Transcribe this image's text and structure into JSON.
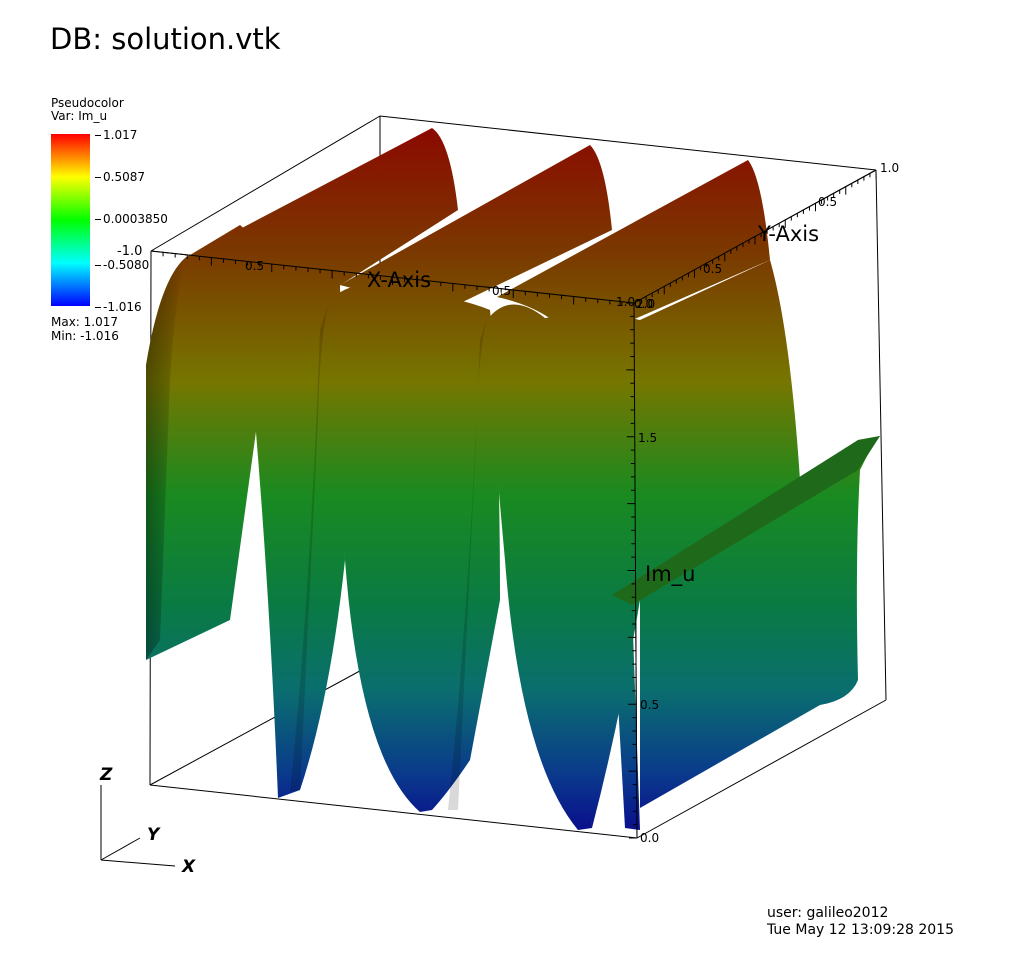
{
  "title": "DB: solution.vtk",
  "legend": {
    "plot_type": "Pseudocolor",
    "var_label": "Var: Im_u",
    "ticks": [
      "1.017",
      "0.5087",
      "0.0003850",
      "-0.5080",
      "-1.016"
    ],
    "max_label": "Max:  1.017",
    "min_label": "Min: -1.016"
  },
  "footer": {
    "user": "user: galileo2012",
    "date": "Tue May 12 13:09:28 2015"
  },
  "axes": {
    "x_title": "X-Axis",
    "y_title": "Y-Axis",
    "z_title": "Im_u",
    "x_ticks": [
      "-1.0",
      "0.5",
      "0.5",
      "1.0"
    ],
    "y_ticks": [
      "0.0",
      "0.5",
      "0.5",
      "1.0"
    ],
    "z_ticks": [
      "2.0",
      "1.5",
      "0.5",
      "0.0"
    ],
    "triad": [
      "Z",
      "Y",
      "X"
    ]
  },
  "chart_data": {
    "type": "surface",
    "title": "DB: solution.vtk",
    "variable": "Im_u",
    "colormap": "hot-to-cold (red, yellow, green, cyan, blue)",
    "value_range": [
      -1.016,
      1.017
    ],
    "description_values": {
      "wave_crests": 3,
      "wave_troughs": 3
    }
  },
  "colors": {
    "red": "#8b0a00",
    "olive": "#7a7a00",
    "green": "#0d8a2c",
    "teal": "#0a7070",
    "blue": "#0a1a8c"
  }
}
